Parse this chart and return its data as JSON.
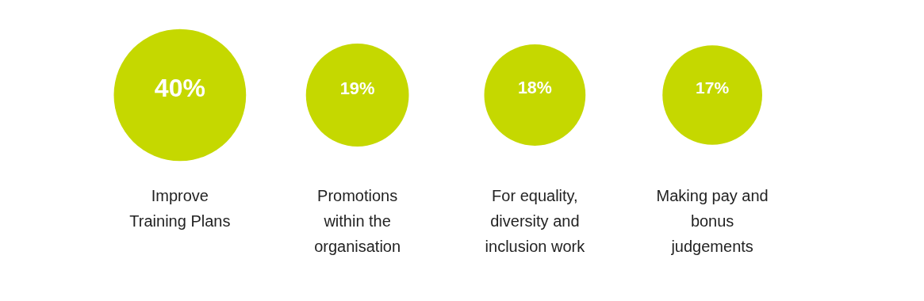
{
  "chart_data": {
    "type": "other",
    "categories": [
      "Improve Training Plans",
      "Promotions within the organisation",
      "For equality, diversity and inclusion work",
      "Making pay and bonus judgements"
    ],
    "values": [
      40,
      19,
      18,
      17
    ],
    "value_labels": [
      "40%",
      "19%",
      "18%",
      "17%"
    ],
    "color": "#c5d800"
  }
}
